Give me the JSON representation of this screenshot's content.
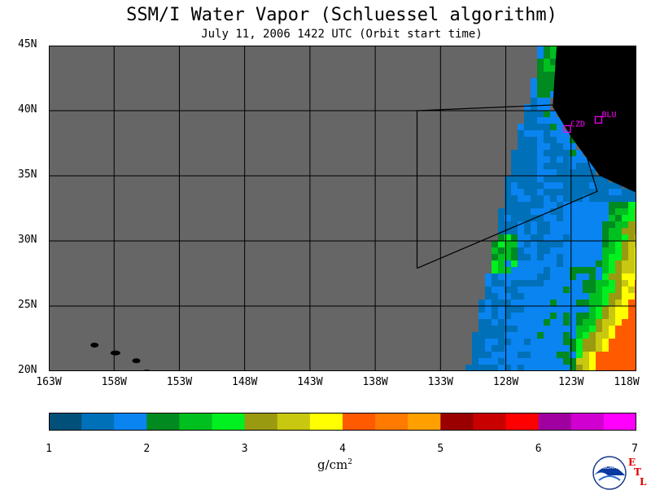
{
  "title": "SSM/I Water Vapor (Schluessel algorithm)",
  "subtitle": "July 11, 2006  1422 UTC  (Orbit start time)",
  "map": {
    "lon_range": [
      -163,
      -118
    ],
    "lat_range": [
      20,
      45
    ],
    "lat_labels": [
      "45N",
      "40N",
      "35N",
      "30N",
      "25N",
      "20N"
    ],
    "lon_labels": [
      "163W",
      "158W",
      "153W",
      "148W",
      "143W",
      "138W",
      "133W",
      "128W",
      "123W",
      "118W"
    ],
    "stations": [
      {
        "label": "CZD",
        "lon": -123.3,
        "lat": 38.6
      },
      {
        "label": "BLU",
        "lon": -120.9,
        "lat": 39.3
      }
    ],
    "no_data_color": "#666666",
    "land_color": "#000000",
    "orbit_outline": [
      [
        -134.8,
        27.9
      ],
      [
        -134.8,
        40.0
      ],
      [
        -123.0,
        40.5
      ],
      [
        -121.0,
        33.8
      ],
      [
        -134.8,
        27.9
      ]
    ]
  },
  "colorbar": {
    "min": 1,
    "max": 7,
    "tick_labels": [
      "1",
      "2",
      "3",
      "4",
      "5",
      "6",
      "7"
    ],
    "colors": [
      "#00507a",
      "#0070b8",
      "#0a84f0",
      "#008a20",
      "#00c020",
      "#00f020",
      "#9a9a10",
      "#c8c810",
      "#ffff00",
      "#ff5a00",
      "#ff7a00",
      "#ffa000",
      "#9a0000",
      "#c80000",
      "#ff0000",
      "#a000a0",
      "#d000d0",
      "#ff00ff"
    ],
    "units": "g/cm",
    "units_sup": "2"
  },
  "logo": {
    "text": "NOAA",
    "etl_letters": [
      "E",
      "T",
      "L"
    ]
  }
}
